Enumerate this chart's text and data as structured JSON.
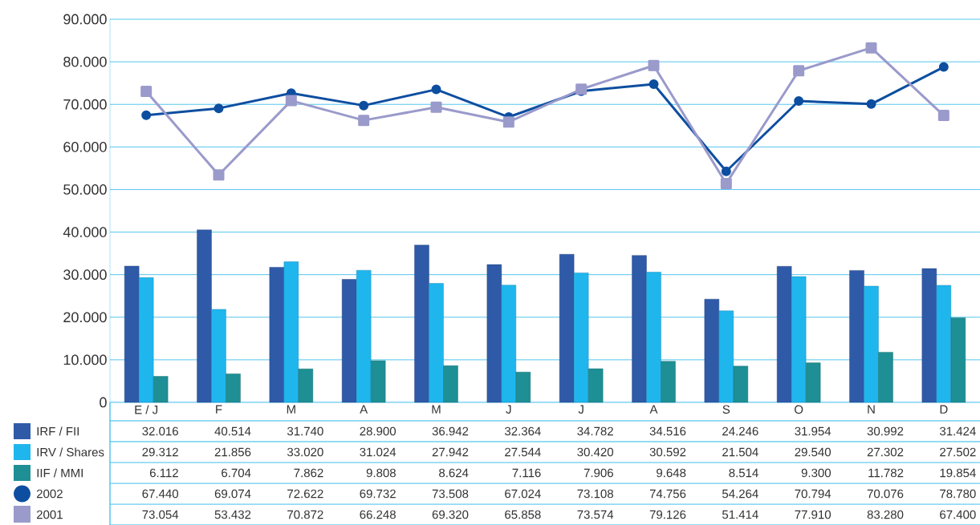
{
  "chart_data": {
    "type": "bar",
    "categories": [
      "E / J",
      "F",
      "M",
      "A",
      "M",
      "J",
      "J",
      "A",
      "S",
      "O",
      "N",
      "D"
    ],
    "series": [
      {
        "name": "IRF / FII",
        "color": "#2f5aa8",
        "values": [
          32016,
          40514,
          31740,
          28900,
          36942,
          32364,
          34782,
          34516,
          24246,
          31954,
          30992,
          31424
        ],
        "value_labels": [
          "32.016",
          "40.514",
          "31.740",
          "28.900",
          "36.942",
          "32.364",
          "34.782",
          "34.516",
          "24.246",
          "31.954",
          "30.992",
          "31.424"
        ]
      },
      {
        "name": "IRV / Shares",
        "color": "#1fb6ee",
        "values": [
          29312,
          21856,
          33020,
          31024,
          27942,
          27544,
          30420,
          30592,
          21504,
          29540,
          27302,
          27502
        ],
        "value_labels": [
          "29.312",
          "21.856",
          "33.020",
          "31.024",
          "27.942",
          "27.544",
          "30.420",
          "30.592",
          "21.504",
          "29.540",
          "27.302",
          "27.502"
        ]
      },
      {
        "name": "IIF / MMI",
        "color": "#1e8f94",
        "values": [
          6112,
          6704,
          7862,
          9808,
          8624,
          7116,
          7906,
          9648,
          8514,
          9300,
          11782,
          19854
        ],
        "value_labels": [
          "6.112",
          "6.704",
          "7.862",
          "9.808",
          "8.624",
          "7.116",
          "7.906",
          "9.648",
          "8.514",
          "9.300",
          "11.782",
          "19.854"
        ]
      },
      {
        "name": "2002",
        "type": "line",
        "marker": "circle",
        "color": "#0d4ea0",
        "values": [
          67440,
          69074,
          72622,
          69732,
          73508,
          67024,
          73108,
          74756,
          54264,
          70794,
          70076,
          78780
        ],
        "value_labels": [
          "67.440",
          "69.074",
          "72.622",
          "69.732",
          "73.508",
          "67.024",
          "73.108",
          "74.756",
          "54.264",
          "70.794",
          "70.076",
          "78.780"
        ]
      },
      {
        "name": "2001",
        "type": "line",
        "marker": "square",
        "color": "#9a9acb",
        "values": [
          73054,
          53432,
          70872,
          66248,
          69320,
          65858,
          73574,
          79126,
          51414,
          77910,
          83280,
          67400
        ],
        "value_labels": [
          "73.054",
          "53.432",
          "70.872",
          "66.248",
          "69.320",
          "65.858",
          "73.574",
          "79.126",
          "51.414",
          "77.910",
          "83.280",
          "67.400"
        ]
      }
    ],
    "ylim": [
      0,
      90000
    ],
    "yticks": [
      {
        "value": 0,
        "label": "0"
      },
      {
        "value": 10000,
        "label": "10.000"
      },
      {
        "value": 20000,
        "label": "20.000"
      },
      {
        "value": 30000,
        "label": "30.000"
      },
      {
        "value": 40000,
        "label": "40.000"
      },
      {
        "value": 50000,
        "label": "50.000"
      },
      {
        "value": 60000,
        "label": "60.000"
      },
      {
        "value": 70000,
        "label": "70.000"
      },
      {
        "value": 80000,
        "label": "80.000"
      },
      {
        "value": 90000,
        "label": "90.000"
      }
    ],
    "grid": "y",
    "legend": "bottom left"
  }
}
